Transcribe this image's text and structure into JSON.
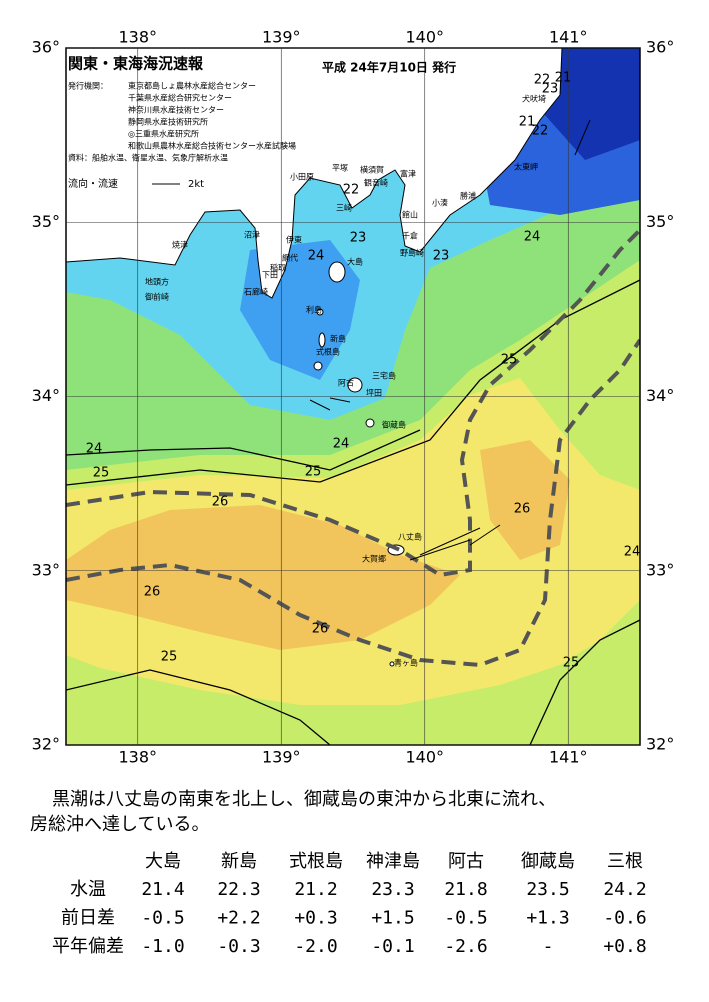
{
  "header": {
    "title": "関東・東海海況速報",
    "date": "平成 24年7月10日 発行"
  },
  "issuers": {
    "label": "発行機関：",
    "names": [
      "東京都島しょ農林水産総合センター",
      "千葉県水産総合研究センター",
      "神奈川県水産技術センター",
      "静岡県水産技術研究所",
      "◎三重県水産研究所",
      "和歌山県農林水産総合技術センター水産試験場"
    ]
  },
  "source": "資料：船舶水温、衛星水温、気象庁解析水温",
  "legend": {
    "label": "流向・流速",
    "speed": "2kt"
  },
  "map": {
    "xlim": [
      137.5,
      141.5
    ],
    "ylim": [
      32,
      36
    ],
    "xticks": [
      {
        "value": 138,
        "label": "138°"
      },
      {
        "value": 139,
        "label": "139°"
      },
      {
        "value": 140,
        "label": "140°"
      },
      {
        "value": 141,
        "label": "141°"
      }
    ],
    "yticks": [
      {
        "value": 32,
        "label": "32°"
      },
      {
        "value": 33,
        "label": "33°"
      },
      {
        "value": 34,
        "label": "34°"
      },
      {
        "value": 35,
        "label": "35°"
      },
      {
        "value": 36,
        "label": "36°"
      }
    ]
  },
  "place_names": [
    "犬吠埼",
    "太東岬",
    "勝浦",
    "小湊",
    "館山",
    "千倉",
    "野島崎",
    "富津",
    "観音崎",
    "横須賀",
    "平塚",
    "小田原",
    "三崎",
    "沼津",
    "伊東",
    "網代",
    "稲取",
    "下田",
    "石廊崎",
    "焼津",
    "地頭方",
    "御前崎",
    "大島",
    "利島",
    "新島",
    "式根島",
    "三宅島",
    "阿古",
    "坪田",
    "御蔵島",
    "八丈島",
    "大賀郷",
    "青ヶ島"
  ],
  "isotherm_labels": [
    21,
    23,
    22,
    21,
    22,
    22,
    23,
    23,
    24,
    24,
    25,
    24,
    24,
    25,
    25,
    26,
    26,
    24,
    26,
    26,
    25,
    25
  ],
  "summary": [
    "黒潮は八丈島の南東を北上し、御蔵島の東沖から北東に流れ、",
    "房総沖へ達している。"
  ],
  "table": {
    "columns": [
      "大島",
      "新島",
      "式根島",
      "神津島",
      "阿古",
      "御蔵島",
      "三根"
    ],
    "rows": [
      {
        "label": "水温",
        "values": [
          "21.4",
          "22.3",
          "21.2",
          "23.3",
          "21.8",
          "23.5",
          "24.2"
        ]
      },
      {
        "label": "前日差",
        "values": [
          "-0.5",
          "+2.2",
          "+0.3",
          "+1.5",
          "-0.5",
          "+1.3",
          "-0.6"
        ]
      },
      {
        "label": "平年偏差",
        "values": [
          "-1.0",
          "-0.3",
          "-2.0",
          "-0.1",
          "-2.6",
          "-",
          "+0.8"
        ]
      }
    ]
  }
}
